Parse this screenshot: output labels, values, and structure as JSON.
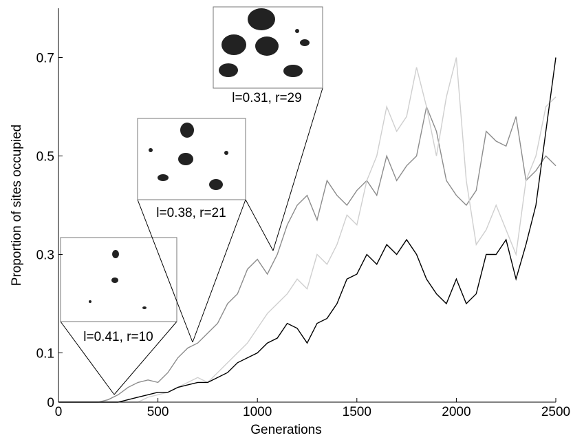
{
  "chart_data": {
    "type": "line",
    "x_label": "Generations",
    "y_label": "Proportion of sites occupied",
    "x": [
      0,
      50,
      100,
      150,
      200,
      250,
      300,
      350,
      400,
      450,
      500,
      550,
      600,
      650,
      700,
      750,
      800,
      850,
      900,
      950,
      1000,
      1050,
      1100,
      1150,
      1200,
      1250,
      1300,
      1350,
      1400,
      1450,
      1500,
      1550,
      1600,
      1650,
      1700,
      1750,
      1800,
      1850,
      1900,
      1950,
      2000,
      2050,
      2100,
      2150,
      2200,
      2250,
      2300,
      2350,
      2400,
      2450,
      2500
    ],
    "series": [
      {
        "color": "#8c8c8c",
        "values": [
          0,
          0,
          0,
          0,
          0,
          0.005,
          0.015,
          0.03,
          0.04,
          0.045,
          0.04,
          0.06,
          0.09,
          0.11,
          0.12,
          0.14,
          0.16,
          0.2,
          0.22,
          0.27,
          0.29,
          0.26,
          0.3,
          0.36,
          0.4,
          0.42,
          0.37,
          0.45,
          0.42,
          0.4,
          0.43,
          0.45,
          0.42,
          0.5,
          0.45,
          0.48,
          0.5,
          0.6,
          0.55,
          0.45,
          0.42,
          0.4,
          0.43,
          0.55,
          0.53,
          0.52,
          0.58,
          0.45,
          0.47,
          0.5,
          0.48
        ]
      },
      {
        "color": "#cfcfcf",
        "values": [
          0,
          0,
          0,
          0,
          0,
          0,
          0,
          0,
          0,
          0.01,
          0.015,
          0.02,
          0.03,
          0.04,
          0.05,
          0.04,
          0.06,
          0.08,
          0.1,
          0.12,
          0.15,
          0.18,
          0.2,
          0.22,
          0.25,
          0.23,
          0.3,
          0.28,
          0.32,
          0.38,
          0.36,
          0.45,
          0.5,
          0.6,
          0.55,
          0.58,
          0.68,
          0.6,
          0.5,
          0.62,
          0.7,
          0.45,
          0.32,
          0.35,
          0.4,
          0.35,
          0.3,
          0.45,
          0.5,
          0.6,
          0.62
        ]
      },
      {
        "color": "#000000",
        "values": [
          0,
          0,
          0,
          0,
          0,
          0,
          0,
          0.005,
          0.01,
          0.015,
          0.02,
          0.02,
          0.03,
          0.035,
          0.04,
          0.04,
          0.05,
          0.06,
          0.08,
          0.09,
          0.1,
          0.12,
          0.13,
          0.16,
          0.15,
          0.12,
          0.16,
          0.17,
          0.2,
          0.25,
          0.26,
          0.3,
          0.28,
          0.32,
          0.3,
          0.33,
          0.3,
          0.25,
          0.22,
          0.2,
          0.25,
          0.2,
          0.22,
          0.3,
          0.3,
          0.33,
          0.25,
          0.32,
          0.4,
          0.55,
          0.7
        ]
      }
    ],
    "xlim": [
      0,
      2500
    ],
    "xticks": [
      0,
      500,
      1000,
      1500,
      2000,
      2500
    ],
    "ylim": [
      0,
      0.8
    ],
    "yticks": [
      0,
      0.1,
      0.3,
      0.5,
      0.7
    ],
    "annotations": [
      "l=0.41, r=10",
      "l=0.38, r=21",
      "l=0.31, r=29"
    ]
  }
}
